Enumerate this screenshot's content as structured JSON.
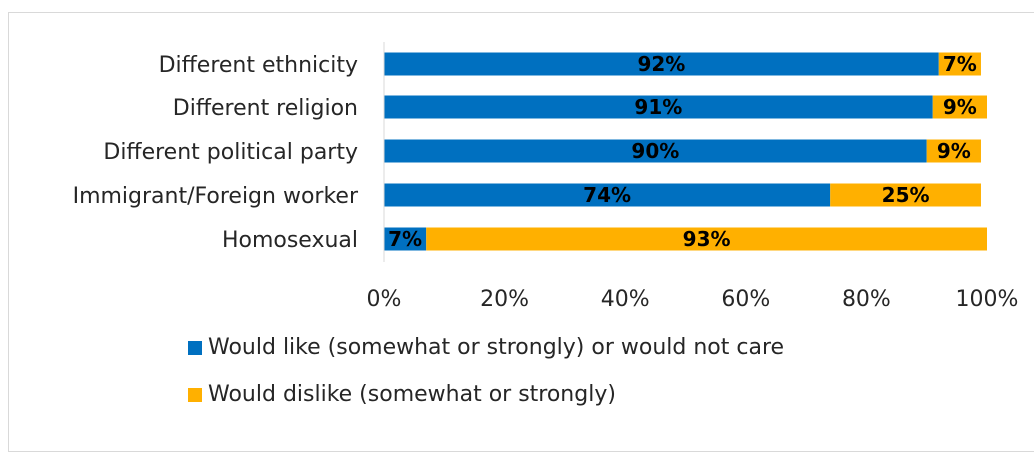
{
  "chart_data": {
    "type": "bar",
    "orientation": "horizontal",
    "stacked": true,
    "title": "",
    "xlabel": "",
    "ylabel": "",
    "xlim": [
      0,
      100
    ],
    "grid": false,
    "legend_position": "bottom",
    "categories": [
      "Different ethnicity",
      "Different religion",
      "Different political party",
      "Immigrant/Foreign worker",
      "Homosexual"
    ],
    "series": [
      {
        "name": "Would like (somewhat or strongly) or would not care",
        "color": "#0070C0",
        "values": [
          92,
          91,
          90,
          74,
          7
        ],
        "labels": [
          "92%",
          "91%",
          "90%",
          "74%",
          "7%"
        ]
      },
      {
        "name": "Would dislike (somewhat or strongly)",
        "color": "#FFB000",
        "values": [
          7,
          9,
          9,
          25,
          93
        ],
        "labels": [
          "7%",
          "9%",
          "9%",
          "25%",
          "93%"
        ]
      }
    ],
    "x_ticks": [
      "0%",
      "20%",
      "40%",
      "60%",
      "80%",
      "100%"
    ]
  }
}
